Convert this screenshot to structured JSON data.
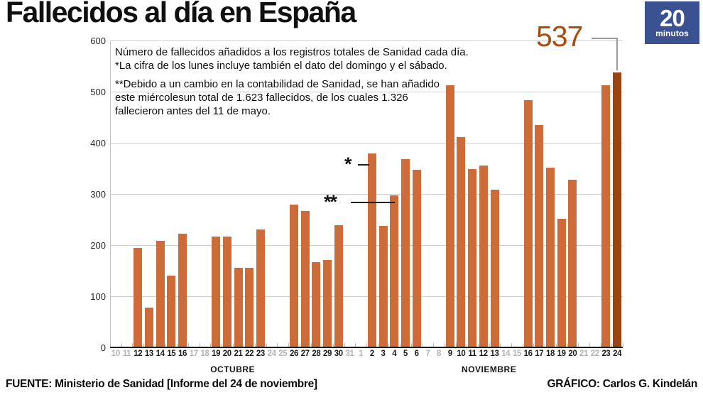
{
  "title": "Fallecidos al día en España",
  "logo": {
    "big": "20",
    "small": "minutos",
    "bg_color": "#3a5192"
  },
  "note": {
    "lines": [
      "Número de fallecidos añadidos a los registros totales de Sanidad cada día.",
      "*La cifra de los lunes incluye también el dato del domingo y el sábado.",
      "",
      "**Debido a un cambio en la contabilidad de Sanidad, se han añadido",
      "este miércolesun total de 1.623 fallecidos, de los cuales 1.326",
      "fallecieron antes del 11 de mayo."
    ]
  },
  "annotations": {
    "monday_marker": "*",
    "accounting_marker": "**"
  },
  "callout": {
    "value": "537"
  },
  "footer": {
    "source": "FUENTE: Ministerio de Sanidad [Informe del 24 de noviembre]",
    "credit": "GRÁFICO: Carlos G. Kindelán"
  },
  "chart_data": {
    "type": "bar",
    "title": "Fallecidos al día en España",
    "ylabel": "",
    "xlabel": "",
    "ylim": [
      0,
      600
    ],
    "y_ticks": [
      0,
      100,
      200,
      300,
      400,
      500,
      600
    ],
    "grid": true,
    "bar_color": "#cd6c39",
    "highlight_color": "#9a4413",
    "months": [
      {
        "label": "OCTUBRE",
        "from_index": 0,
        "to_index": 21
      },
      {
        "label": "NOVIEMBRE",
        "from_index": 22,
        "to_index": 45
      }
    ],
    "days": [
      {
        "d": "10",
        "v": null,
        "muted": true
      },
      {
        "d": "11",
        "v": null,
        "muted": true
      },
      {
        "d": "12",
        "v": 195,
        "muted": false
      },
      {
        "d": "13",
        "v": 78,
        "muted": false
      },
      {
        "d": "14",
        "v": 209,
        "muted": false
      },
      {
        "d": "15",
        "v": 140,
        "muted": false
      },
      {
        "d": "16",
        "v": 222,
        "muted": false
      },
      {
        "d": "17",
        "v": null,
        "muted": true
      },
      {
        "d": "18",
        "v": null,
        "muted": true
      },
      {
        "d": "19",
        "v": 216,
        "muted": false
      },
      {
        "d": "20",
        "v": 217,
        "muted": false
      },
      {
        "d": "21",
        "v": 155,
        "muted": false
      },
      {
        "d": "22",
        "v": 156,
        "muted": false
      },
      {
        "d": "23",
        "v": 231,
        "muted": false
      },
      {
        "d": "24",
        "v": null,
        "muted": true
      },
      {
        "d": "25",
        "v": null,
        "muted": true
      },
      {
        "d": "26",
        "v": 279,
        "muted": false
      },
      {
        "d": "27",
        "v": 267,
        "muted": false
      },
      {
        "d": "28",
        "v": 167,
        "muted": false
      },
      {
        "d": "29",
        "v": 171,
        "muted": false
      },
      {
        "d": "30",
        "v": 239,
        "muted": false
      },
      {
        "d": "31",
        "v": null,
        "muted": true
      },
      {
        "d": "1",
        "v": null,
        "muted": true
      },
      {
        "d": "2",
        "v": 379,
        "muted": false
      },
      {
        "d": "3",
        "v": 238,
        "muted": false
      },
      {
        "d": "4",
        "v": 297,
        "muted": false
      },
      {
        "d": "5",
        "v": 368,
        "muted": false
      },
      {
        "d": "6",
        "v": 347,
        "muted": false
      },
      {
        "d": "7",
        "v": null,
        "muted": true
      },
      {
        "d": "8",
        "v": null,
        "muted": true
      },
      {
        "d": "9",
        "v": 512,
        "muted": false
      },
      {
        "d": "10",
        "v": 411,
        "muted": false
      },
      {
        "d": "11",
        "v": 349,
        "muted": false
      },
      {
        "d": "12",
        "v": 356,
        "muted": false
      },
      {
        "d": "13",
        "v": 308,
        "muted": false
      },
      {
        "d": "14",
        "v": null,
        "muted": true
      },
      {
        "d": "15",
        "v": null,
        "muted": true
      },
      {
        "d": "16",
        "v": 484,
        "muted": false
      },
      {
        "d": "17",
        "v": 435,
        "muted": false
      },
      {
        "d": "18",
        "v": 351,
        "muted": false
      },
      {
        "d": "19",
        "v": 251,
        "muted": false
      },
      {
        "d": "20",
        "v": 328,
        "muted": false
      },
      {
        "d": "21",
        "v": null,
        "muted": true
      },
      {
        "d": "22",
        "v": null,
        "muted": true
      },
      {
        "d": "23",
        "v": 512,
        "muted": false
      },
      {
        "d": "24",
        "v": 537,
        "muted": false,
        "highlight": true
      }
    ]
  }
}
